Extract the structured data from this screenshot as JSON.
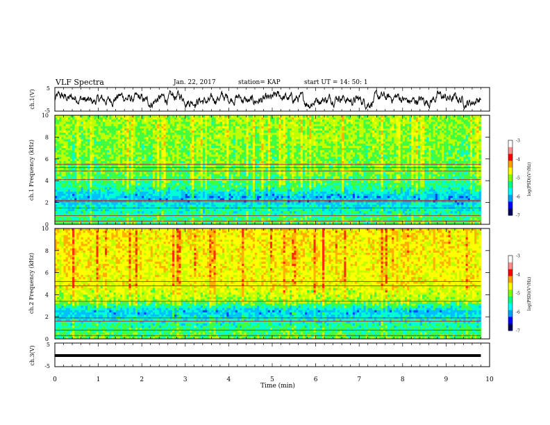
{
  "header": {
    "title": "VLF Spectra",
    "date": "Jan. 22, 2017",
    "station": "station= KAP",
    "start": "start  UT  =   14: 50: 1"
  },
  "colors": {
    "spectrum": [
      "#000060",
      "#0000ff",
      "#00a0ff",
      "#00ffff",
      "#00ff80",
      "#60ff00",
      "#ffff00",
      "#ffa000",
      "#ff0000",
      "#ffc0c0",
      "#ffffff"
    ],
    "trace": "#000000"
  },
  "chart_data": [
    {
      "type": "line",
      "ylabel": "ch.1(V)",
      "ylim": [
        -5,
        5
      ],
      "yticks": [
        "5",
        "-5"
      ],
      "xlim": [
        0,
        10
      ],
      "description_values": "waveform oscillating between about -3 and +3 V"
    },
    {
      "type": "heatmap",
      "ylabel": "ch.1 Frequency (kHz)",
      "ylim": [
        0,
        10
      ],
      "yticks": [
        "0",
        "2",
        "4",
        "6",
        "8",
        "10"
      ],
      "xlim": [
        0,
        9.8
      ],
      "colorbar": {
        "label": "log(PSD)(V²/Hz)",
        "range": [
          -7,
          -3
        ],
        "ticks": [
          "-3",
          "-4",
          "-5",
          "-6",
          "-7"
        ]
      },
      "bands_kHz": [
        0.3,
        0.8,
        1.5,
        2.1,
        2.2,
        4.1,
        4.9,
        5.2,
        5.5
      ],
      "dominant_level_by_kHz": [
        [
          0,
          -5.0
        ],
        [
          2.5,
          -6.0
        ],
        [
          3.5,
          -5.2
        ],
        [
          5,
          -4.9
        ],
        [
          10,
          -4.6
        ]
      ]
    },
    {
      "type": "heatmap",
      "ylabel": "ch.2 Frequency (kHz)",
      "ylim": [
        0,
        10
      ],
      "yticks": [
        "0",
        "2",
        "4",
        "6",
        "8",
        "10"
      ],
      "xlim": [
        0,
        9.8
      ],
      "colorbar": {
        "label": "log(PSD)(V²/Hz)",
        "range": [
          -7,
          -3
        ],
        "ticks": [
          "-3",
          "-4",
          "-5",
          "-6",
          "-7"
        ]
      },
      "bands_kHz": [
        0.3,
        0.8,
        1.6,
        1.9,
        3.4,
        4.8,
        5.2
      ],
      "dominant_level_by_kHz": [
        [
          0,
          -4.9
        ],
        [
          2.5,
          -5.9
        ],
        [
          3.5,
          -4.6
        ],
        [
          5,
          -4.1
        ],
        [
          10,
          -3.9
        ]
      ]
    },
    {
      "type": "line",
      "ylabel": "ch.3(V)",
      "ylim": [
        -5,
        5
      ],
      "yticks": [
        "5",
        "-5"
      ],
      "xlim": [
        0,
        10
      ],
      "xlabel": "Time (min)",
      "xticks": [
        "0",
        "1",
        "2",
        "3",
        "4",
        "5",
        "6",
        "7",
        "8",
        "9",
        "10"
      ],
      "constant_value": -1.5
    }
  ]
}
